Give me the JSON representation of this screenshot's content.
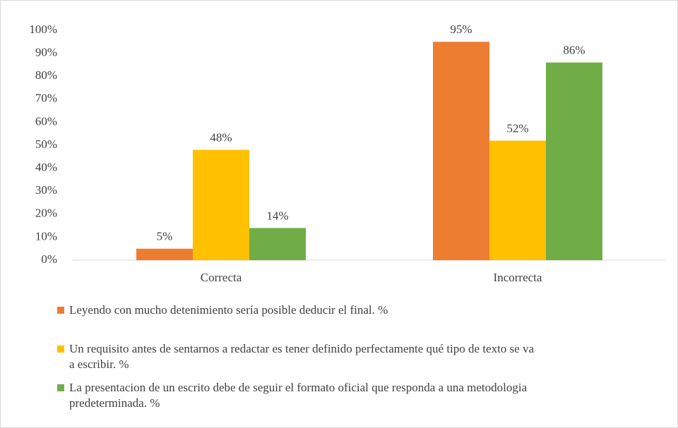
{
  "chart_data": {
    "type": "bar",
    "categories": [
      "Correcta",
      "Incorrecta"
    ],
    "series": [
      {
        "name": "Leyendo con mucho detenimiento sería posible deducir el final. %",
        "color": "#ED7D31",
        "values": [
          5,
          95
        ],
        "value_labels": [
          "5%",
          "95%"
        ]
      },
      {
        "name": "Un requisito antes de sentarnos a redactar es tener definido perfectamente qué tipo de texto se va a escribir. %",
        "color": "#FFC000",
        "values": [
          48,
          52
        ],
        "value_labels": [
          "48%",
          "52%"
        ]
      },
      {
        "name": "La presentacion de un escrito debe de seguir el formato oficial que responda a una metodologia predeterminada. %",
        "color": "#70AD47",
        "values": [
          14,
          86
        ],
        "value_labels": [
          "14%",
          "86%"
        ]
      }
    ],
    "ylim": [
      0,
      100
    ],
    "yticks": [
      {
        "value": 0,
        "label": "0%"
      },
      {
        "value": 10,
        "label": "10%"
      },
      {
        "value": 20,
        "label": "20%"
      },
      {
        "value": 30,
        "label": "30%"
      },
      {
        "value": 40,
        "label": "40%"
      },
      {
        "value": 50,
        "label": "50%"
      },
      {
        "value": 60,
        "label": "60%"
      },
      {
        "value": 70,
        "label": "70%"
      },
      {
        "value": 80,
        "label": "80%"
      },
      {
        "value": 90,
        "label": "90%"
      },
      {
        "value": 100,
        "label": "100%"
      }
    ],
    "grid": false,
    "legend": "bottom"
  }
}
